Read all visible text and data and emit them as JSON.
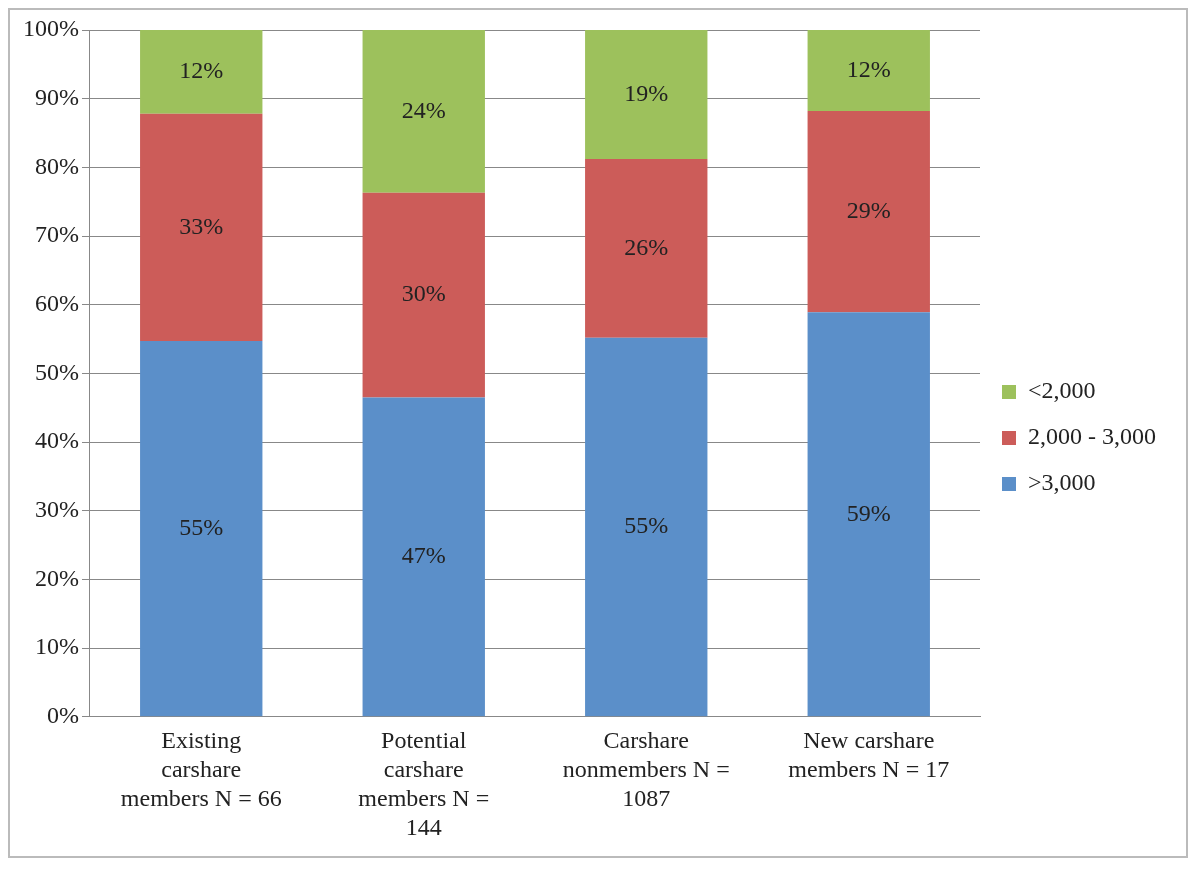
{
  "chart_data": {
    "type": "bar",
    "stacked": true,
    "categories": [
      "Existing carshare members N = 66",
      "Potential carshare members N = 144",
      "Carshare nonmembers N = 1087",
      "New carshare members N = 17"
    ],
    "series": [
      {
        "name": ">3,000",
        "color": "#5b8fc9",
        "values": [
          54.7,
          46.5,
          55.2,
          58.9
        ],
        "value_labels": [
          "55%",
          "47%",
          "55%",
          "59%"
        ]
      },
      {
        "name": "2,000 - 3,000",
        "color": "#cc5c59",
        "values": [
          33.1,
          29.8,
          26.0,
          29.3
        ],
        "value_labels": [
          "33%",
          "30%",
          "26%",
          "29%"
        ]
      },
      {
        "name": "<2,000",
        "color": "#9dc15c",
        "values": [
          12.2,
          23.7,
          18.8,
          11.8
        ],
        "value_labels": [
          "12%",
          "24%",
          "19%",
          "12%"
        ]
      }
    ],
    "ylim": [
      0,
      100
    ],
    "yticks": [
      {
        "value": 0,
        "label": "0%"
      },
      {
        "value": 10,
        "label": "10%"
      },
      {
        "value": 20,
        "label": "20%"
      },
      {
        "value": 30,
        "label": "30%"
      },
      {
        "value": 40,
        "label": "40%"
      },
      {
        "value": 50,
        "label": "50%"
      },
      {
        "value": 60,
        "label": "60%"
      },
      {
        "value": 70,
        "label": "70%"
      },
      {
        "value": 80,
        "label": "80%"
      },
      {
        "value": 90,
        "label": "90%"
      },
      {
        "value": 100,
        "label": "100%"
      }
    ],
    "grid": "y",
    "legend": "right"
  }
}
